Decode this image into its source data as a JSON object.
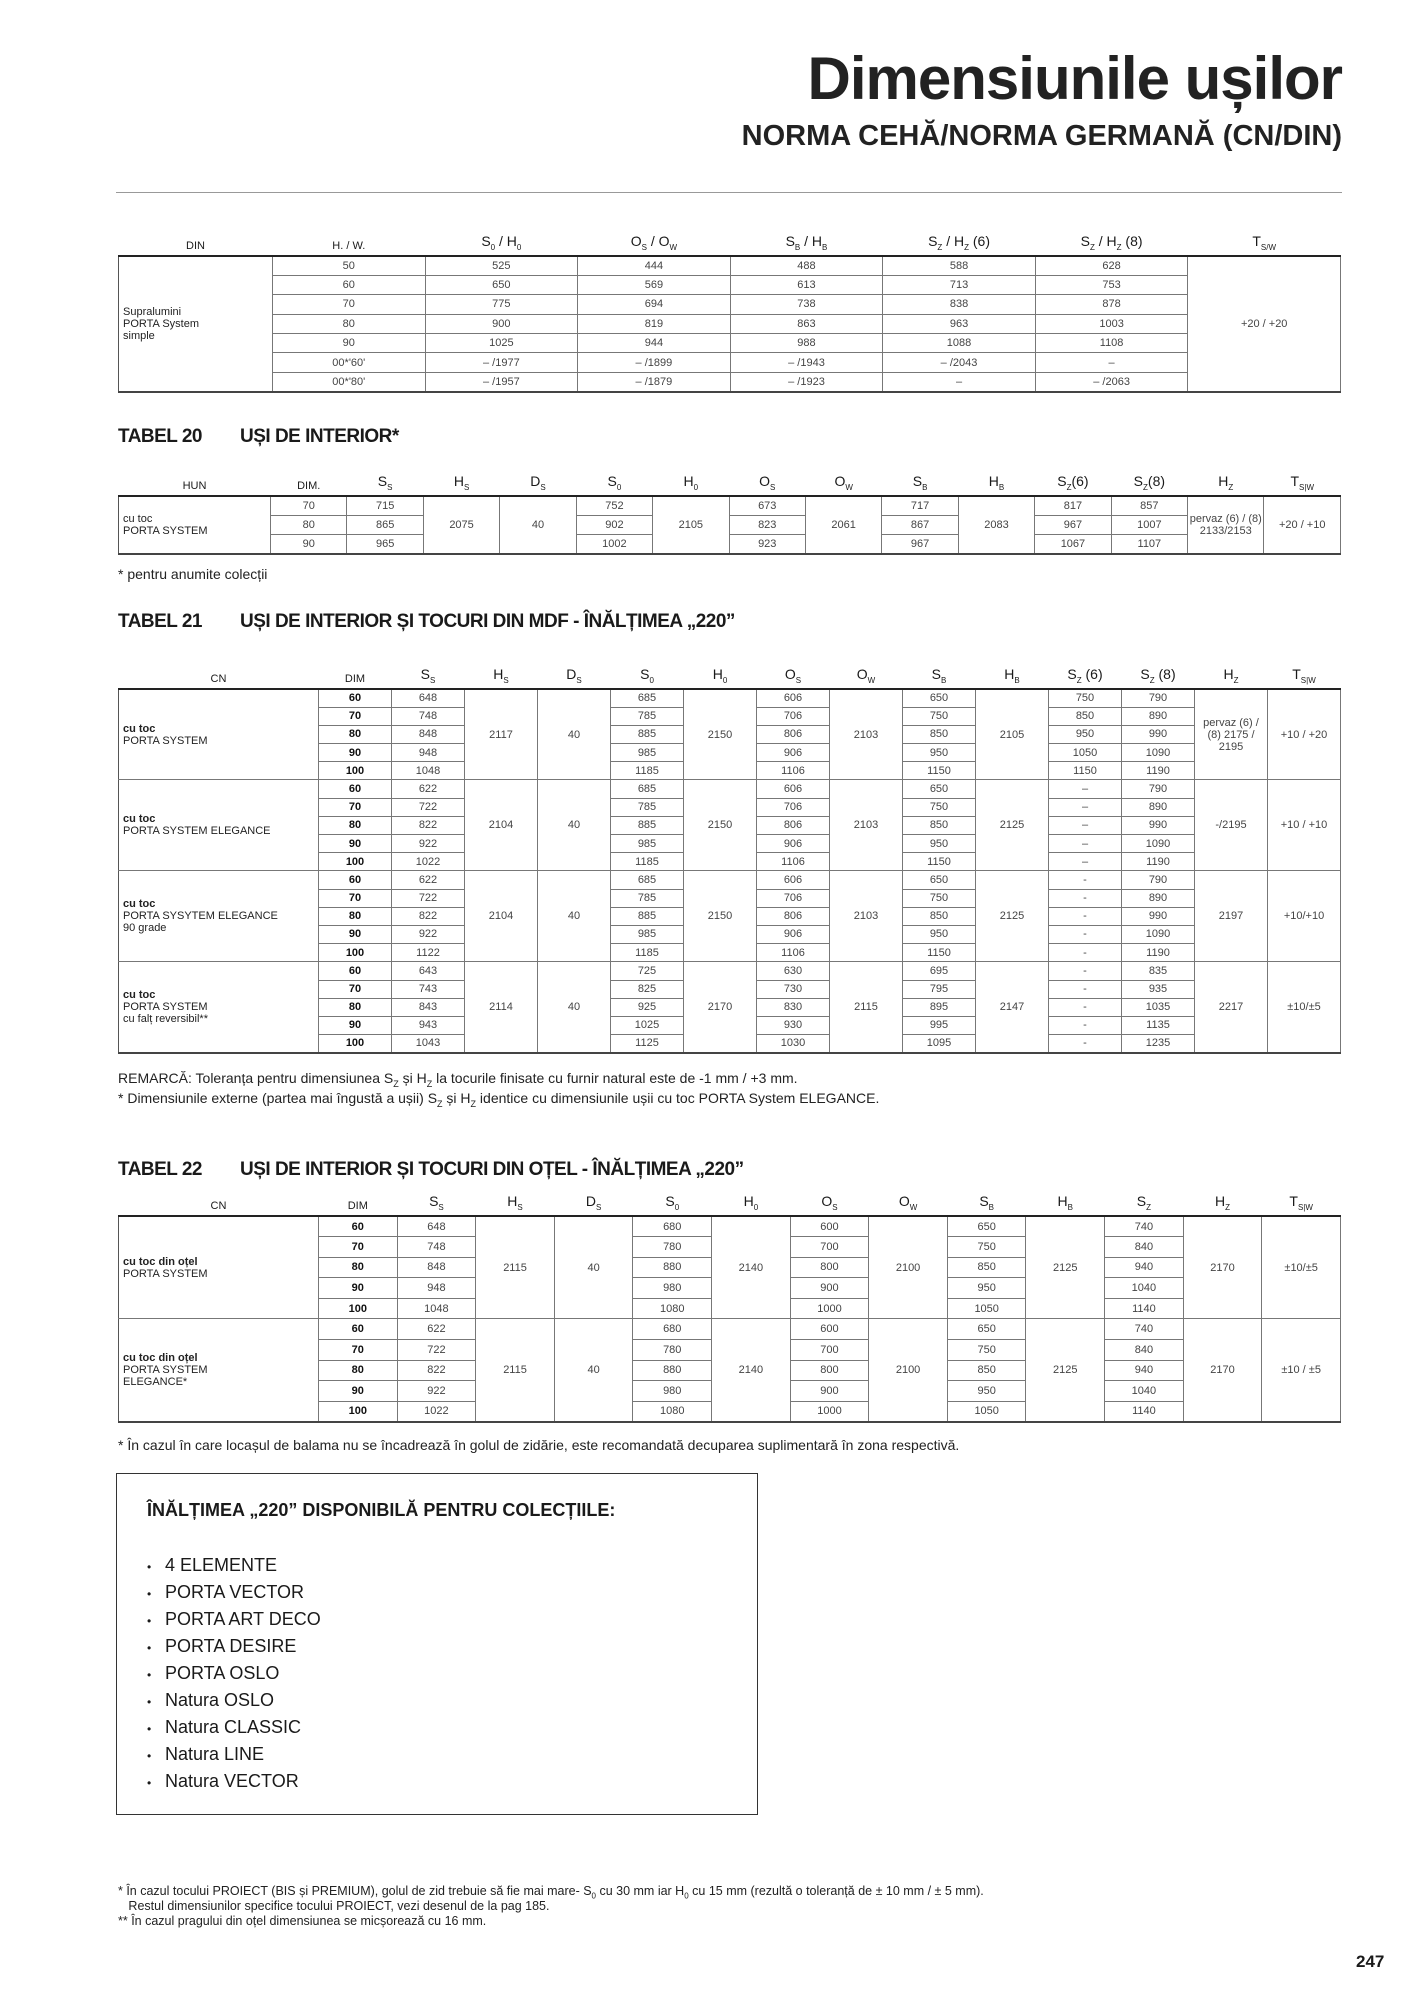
{
  "header": {
    "title": "Dimensiunile ușilor",
    "subtitle": "NORMA CEHĂ/NORMA GERMANĂ (CN/DIN)"
  },
  "tables": [
    {
      "id": "din",
      "label_width": 154,
      "headers": [
        [
          [
            "DIN",
            ""
          ]
        ],
        [
          [
            "H. / W.",
            ""
          ]
        ],
        [
          [
            "S",
            "0"
          ],
          [
            " / H",
            "0"
          ]
        ],
        [
          [
            "O",
            "S"
          ],
          [
            " / O",
            "W"
          ]
        ],
        [
          [
            "S",
            "B"
          ],
          [
            " / H",
            "B"
          ]
        ],
        [
          [
            "S",
            "Z"
          ],
          [
            " / H",
            "Z"
          ],
          [
            " (6)",
            ""
          ]
        ],
        [
          [
            "S",
            "Z"
          ],
          [
            " / H",
            "Z"
          ],
          [
            " (8)",
            ""
          ]
        ],
        [
          [
            "T",
            "S/W"
          ]
        ]
      ],
      "bold_dim": false,
      "groups": [
        {
          "label": [
            "Supralumini",
            "PORTA System",
            "simple"
          ],
          "cols": [
            [
              "50",
              "60",
              "70",
              "80",
              "90",
              "00*'60'",
              "00*'80'"
            ],
            [
              "525",
              "650",
              "775",
              "900",
              "1025",
              "– /1977",
              "– /1957"
            ],
            [
              "444",
              "569",
              "694",
              "819",
              "944",
              "– /1899",
              "– /1879"
            ],
            [
              "488",
              "613",
              "738",
              "863",
              "988",
              "– /1943",
              "– /1923"
            ],
            [
              "588",
              "713",
              "838",
              "963",
              "1088",
              "– /2043",
              "–"
            ],
            [
              "628",
              "753",
              "878",
              "1003",
              "1108",
              "–",
              "– /2063"
            ],
            "+20 / +20"
          ]
        }
      ]
    },
    {
      "id": "t20",
      "title_num": "TABEL 20",
      "title": "UȘI DE INTERIOR*",
      "label_width": 152,
      "headers": [
        [
          [
            "HUN",
            ""
          ]
        ],
        [
          [
            "DIM.",
            ""
          ]
        ],
        [
          [
            "S",
            "S"
          ]
        ],
        [
          [
            "H",
            "S"
          ]
        ],
        [
          [
            "D",
            "S"
          ]
        ],
        [
          [
            "S",
            "0"
          ]
        ],
        [
          [
            "H",
            "0"
          ]
        ],
        [
          [
            "O",
            "S"
          ]
        ],
        [
          [
            "O",
            "W"
          ]
        ],
        [
          [
            "S",
            "B"
          ]
        ],
        [
          [
            "H",
            "B"
          ]
        ],
        [
          [
            "S",
            "Z"
          ],
          [
            "(6)",
            ""
          ]
        ],
        [
          [
            "S",
            "Z"
          ],
          [
            "(8)",
            ""
          ]
        ],
        [
          [
            "H",
            "Z"
          ]
        ],
        [
          [
            "T",
            "S|W"
          ]
        ]
      ],
      "bold_dim": false,
      "groups": [
        {
          "label": [
            "cu toc",
            "PORTA SYSTEM"
          ],
          "cols": [
            [
              "70",
              "80",
              "90"
            ],
            [
              "715",
              "865",
              "965"
            ],
            "2075",
            "40",
            [
              "752",
              "902",
              "1002"
            ],
            "2105",
            [
              "673",
              "823",
              "923"
            ],
            "2061",
            [
              "717",
              "867",
              "967"
            ],
            "2083",
            [
              "817",
              "967",
              "1067"
            ],
            [
              "857",
              "1007",
              "1107"
            ],
            "pervaz (6) / (8) 2133/2153",
            "+20 / +10"
          ]
        }
      ],
      "note": "* pentru anumite colecții"
    },
    {
      "id": "t21",
      "title_num": "TABEL 21",
      "title": "UȘI DE INTERIOR ȘI TOCURI DIN MDF - ÎNĂLȚIMEA „220”",
      "label_width": 200,
      "headers": [
        [
          [
            "CN",
            ""
          ]
        ],
        [
          [
            "DIM",
            ""
          ]
        ],
        [
          [
            "S",
            "S"
          ]
        ],
        [
          [
            "H",
            "S"
          ]
        ],
        [
          [
            "D",
            "S"
          ]
        ],
        [
          [
            "S",
            "0"
          ]
        ],
        [
          [
            "H",
            "0"
          ]
        ],
        [
          [
            "O",
            "S"
          ]
        ],
        [
          [
            "O",
            "W"
          ]
        ],
        [
          [
            "S",
            "B"
          ]
        ],
        [
          [
            "H",
            "B"
          ]
        ],
        [
          [
            "S",
            "Z"
          ],
          [
            " (6)",
            ""
          ]
        ],
        [
          [
            "S",
            "Z"
          ],
          [
            " (8)",
            ""
          ]
        ],
        [
          [
            "H",
            "Z"
          ]
        ],
        [
          [
            "T",
            "S|W"
          ]
        ]
      ],
      "bold_dim": true,
      "groups": [
        {
          "label": [
            "cu toc",
            "PORTA SYSTEM"
          ],
          "cols": [
            [
              "60",
              "70",
              "80",
              "90",
              "100"
            ],
            [
              "648",
              "748",
              "848",
              "948",
              "1048"
            ],
            "2117",
            "40",
            [
              "685",
              "785",
              "885",
              "985",
              "1185"
            ],
            "2150",
            [
              "606",
              "706",
              "806",
              "906",
              "1106"
            ],
            "2103",
            [
              "650",
              "750",
              "850",
              "950",
              "1150"
            ],
            "2105",
            [
              "750",
              "850",
              "950",
              "1050",
              "1150"
            ],
            [
              "790",
              "890",
              "990",
              "1090",
              "1190"
            ],
            "pervaz (6) / (8) 2175 / 2195",
            "+10 / +20"
          ]
        },
        {
          "label": [
            "cu toc",
            "PORTA SYSTEM ELEGANCE"
          ],
          "cols": [
            [
              "60",
              "70",
              "80",
              "90",
              "100"
            ],
            [
              "622",
              "722",
              "822",
              "922",
              "1022"
            ],
            "2104",
            "40",
            [
              "685",
              "785",
              "885",
              "985",
              "1185"
            ],
            "2150",
            [
              "606",
              "706",
              "806",
              "906",
              "1106"
            ],
            "2103",
            [
              "650",
              "750",
              "850",
              "950",
              "1150"
            ],
            "2125",
            [
              "–",
              "–",
              "–",
              "–",
              "–"
            ],
            [
              "790",
              "890",
              "990",
              "1090",
              "1190"
            ],
            "-/2195",
            "+10 / +10"
          ]
        },
        {
          "label": [
            "cu toc",
            "PORTA SYSYTEM ELEGANCE",
            "90 grade"
          ],
          "cols": [
            [
              "60",
              "70",
              "80",
              "90",
              "100"
            ],
            [
              "622",
              "722",
              "822",
              "922",
              "1122"
            ],
            "2104",
            "40",
            [
              "685",
              "785",
              "885",
              "985",
              "1185"
            ],
            "2150",
            [
              "606",
              "706",
              "806",
              "906",
              "1106"
            ],
            "2103",
            [
              "650",
              "750",
              "850",
              "950",
              "1150"
            ],
            "2125",
            [
              "-",
              "-",
              "-",
              "-",
              "-"
            ],
            [
              "790",
              "890",
              "990",
              "1090",
              "1190"
            ],
            "2197",
            "+10/+10"
          ]
        },
        {
          "label": [
            "cu toc",
            "PORTA SYSTEM",
            "cu falț reversibil**"
          ],
          "cols": [
            [
              "60",
              "70",
              "80",
              "90",
              "100"
            ],
            [
              "643",
              "743",
              "843",
              "943",
              "1043"
            ],
            "2114",
            "40",
            [
              "725",
              "825",
              "925",
              "1025",
              "1125"
            ],
            "2170",
            [
              "630",
              "730",
              "830",
              "930",
              "1030"
            ],
            "2115",
            [
              "695",
              "795",
              "895",
              "995",
              "1095"
            ],
            "2147",
            [
              "-",
              "-",
              "-",
              "-",
              "-"
            ],
            [
              "835",
              "935",
              "1035",
              "1135",
              "1235"
            ],
            "2217",
            "±10/±5"
          ]
        }
      ],
      "remark1": [
        "REMARCĂ: Toleranța pentru dimensiunea S",
        "Z",
        " și H",
        "Z",
        " la tocurile finisate cu furnir natural este de -1 mm / +3 mm."
      ],
      "remark2": [
        "* Dimensiunile externe (partea mai îngustă a ușii) S",
        "Z",
        " și H",
        "Z",
        " identice cu dimensiunile ușii cu toc PORTA System ELEGANCE."
      ]
    },
    {
      "id": "t22",
      "title_num": "TABEL 22",
      "title": "UȘI DE INTERIOR ȘI TOCURI DIN OȚEL - ÎNĂLȚIMEA „220”",
      "label_width": 200,
      "headers": [
        [
          [
            "CN",
            ""
          ]
        ],
        [
          [
            "DIM",
            ""
          ]
        ],
        [
          [
            "S",
            "S"
          ]
        ],
        [
          [
            "H",
            "S"
          ]
        ],
        [
          [
            "D",
            "S"
          ]
        ],
        [
          [
            "S",
            "0"
          ]
        ],
        [
          [
            "H",
            "0"
          ]
        ],
        [
          [
            "O",
            "S"
          ]
        ],
        [
          [
            "O",
            "W"
          ]
        ],
        [
          [
            "S",
            "B"
          ]
        ],
        [
          [
            "H",
            "B"
          ]
        ],
        [
          [
            "S",
            "Z"
          ]
        ],
        [
          [
            "H",
            "Z"
          ]
        ],
        [
          [
            "T",
            "S|W"
          ]
        ]
      ],
      "bold_dim": true,
      "groups": [
        {
          "label": [
            "cu toc din oțel",
            "PORTA SYSTEM"
          ],
          "cols": [
            [
              "60",
              "70",
              "80",
              "90",
              "100"
            ],
            [
              "648",
              "748",
              "848",
              "948",
              "1048"
            ],
            "2115",
            "40",
            [
              "680",
              "780",
              "880",
              "980",
              "1080"
            ],
            "2140",
            [
              "600",
              "700",
              "800",
              "900",
              "1000"
            ],
            "2100",
            [
              "650",
              "750",
              "850",
              "950",
              "1050"
            ],
            "2125",
            [
              "740",
              "840",
              "940",
              "1040",
              "1140"
            ],
            "2170",
            "±10/±5"
          ]
        },
        {
          "label": [
            "cu toc din oțel",
            "PORTA SYSTEM",
            "ELEGANCE*"
          ],
          "cols": [
            [
              "60",
              "70",
              "80",
              "90",
              "100"
            ],
            [
              "622",
              "722",
              "822",
              "922",
              "1022"
            ],
            "2115",
            "40",
            [
              "680",
              "780",
              "880",
              "980",
              "1080"
            ],
            "2140",
            [
              "600",
              "700",
              "800",
              "900",
              "1000"
            ],
            "2100",
            [
              "650",
              "750",
              "850",
              "950",
              "1050"
            ],
            "2125",
            [
              "740",
              "840",
              "940",
              "1040",
              "1140"
            ],
            "2170",
            "±10 / ±5"
          ]
        }
      ],
      "note": "* În cazul în care locașul de balama nu se încadrează în golul de zidărie, este recomandată decuparea suplimentară în zona respectivă."
    }
  ],
  "box": {
    "title": "ÎNĂLȚIMEA „220” DISPONIBILĂ PENTRU COLECȚIILE:",
    "bullet": "•",
    "items": [
      "4 ELEMENTE",
      "PORTA VECTOR",
      "PORTA ART DECO",
      "PORTA DESIRE",
      "PORTA OSLO",
      "Natura OSLO",
      "Natura CLASSIC",
      "Natura LINE",
      "Natura VECTOR"
    ]
  },
  "footnotes": {
    "line1": [
      "*  În cazul tocului PROIECT (BIS și PREMIUM), golul de zid trebuie să fie mai mare- S",
      "0",
      " cu 30 mm iar H",
      "0",
      " cu 15 mm (rezultă o toleranță de ± 10 mm / ± 5 mm)."
    ],
    "line2": "   Restul dimensiunilor specifice tocului PROIECT, vezi desenul de la pag 185.",
    "line3": "** În cazul pragului din oțel dimensiunea se micșorează cu 16 mm."
  },
  "page_number": "247"
}
